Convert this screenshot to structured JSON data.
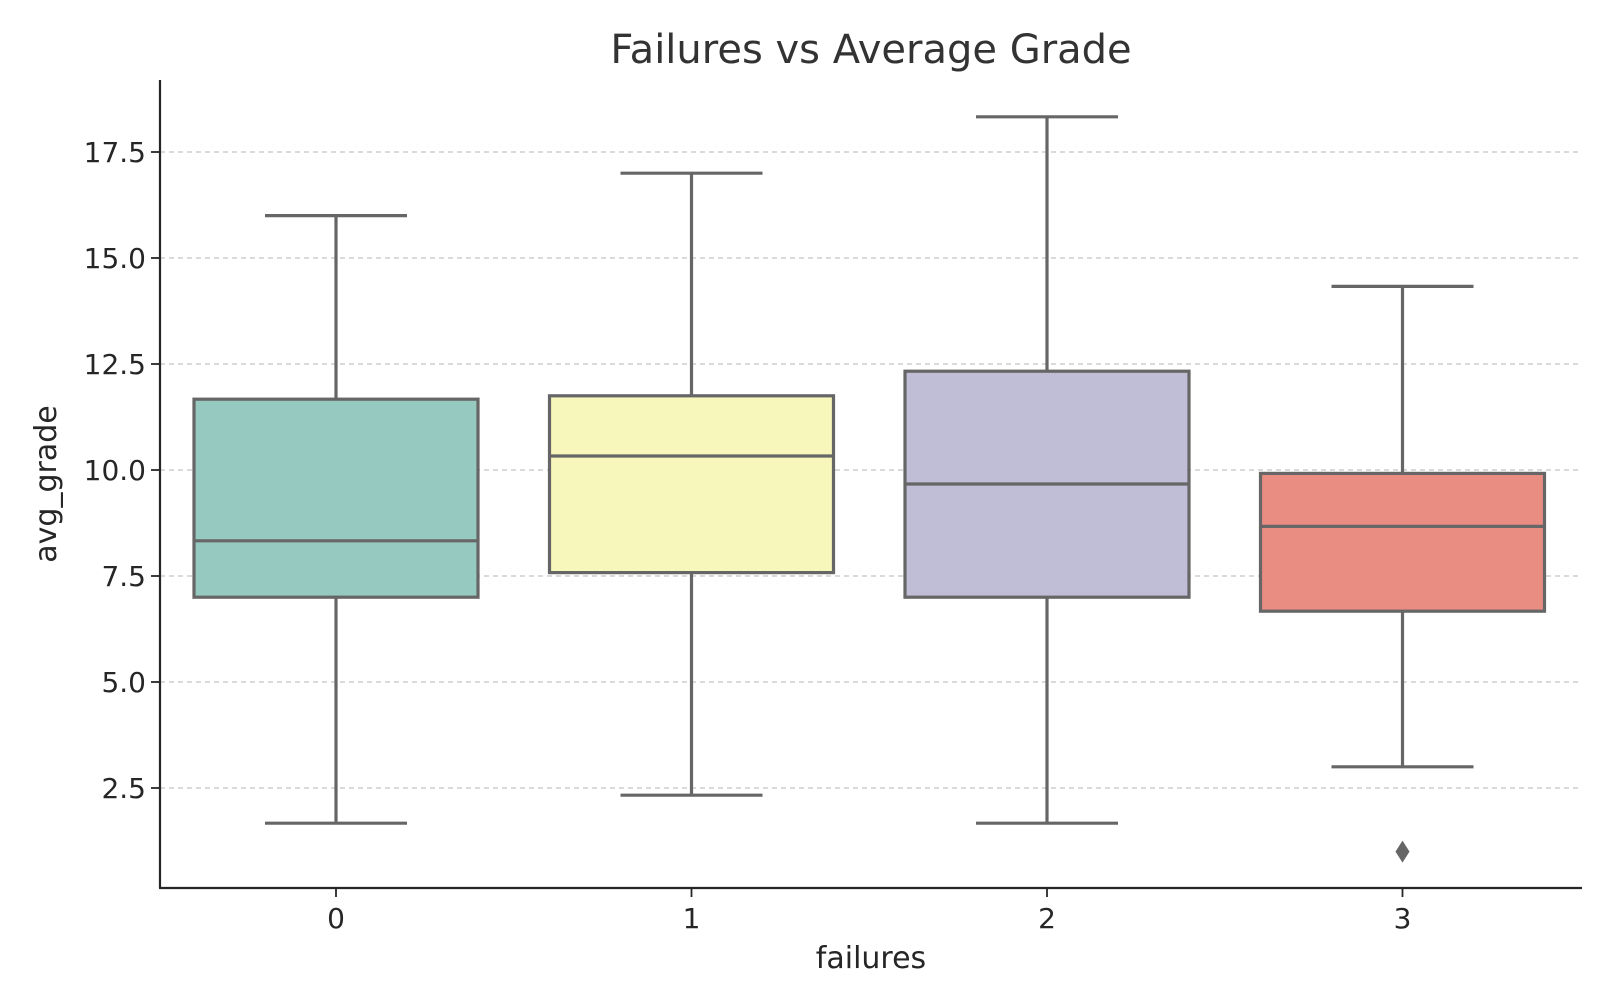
{
  "chart_data": {
    "type": "box",
    "title": "Failures vs Average Grade",
    "xlabel": "failures",
    "ylabel": "avg_grade",
    "ylim": [
      0,
      19
    ],
    "yticks": [
      2.5,
      5.0,
      7.5,
      10.0,
      12.5,
      15.0,
      17.5
    ],
    "ytick_labels": [
      "2.5",
      "5.0",
      "7.5",
      "10.0",
      "12.5",
      "15.0",
      "17.5"
    ],
    "grid": "horizontal-dashed",
    "categories": [
      "0",
      "1",
      "2",
      "3"
    ],
    "boxes": [
      {
        "category": "0",
        "whisker_low": 1.67,
        "q1": 7.0,
        "median": 8.33,
        "q3": 11.67,
        "whisker_high": 16.0,
        "outliers": [],
        "color": "#96C9C0"
      },
      {
        "category": "1",
        "whisker_low": 2.33,
        "q1": 7.58,
        "median": 10.33,
        "q3": 11.75,
        "whisker_high": 17.0,
        "outliers": [],
        "color": "#F7F6BB"
      },
      {
        "category": "2",
        "whisker_low": 1.67,
        "q1": 7.0,
        "median": 9.67,
        "q3": 12.33,
        "whisker_high": 18.33,
        "outliers": [],
        "color": "#C0BDD6"
      },
      {
        "category": "3",
        "whisker_low": 3.0,
        "q1": 6.67,
        "median": 8.67,
        "q3": 9.92,
        "whisker_high": 14.33,
        "outliers": [
          1.0
        ],
        "color": "#E98C81"
      }
    ]
  }
}
